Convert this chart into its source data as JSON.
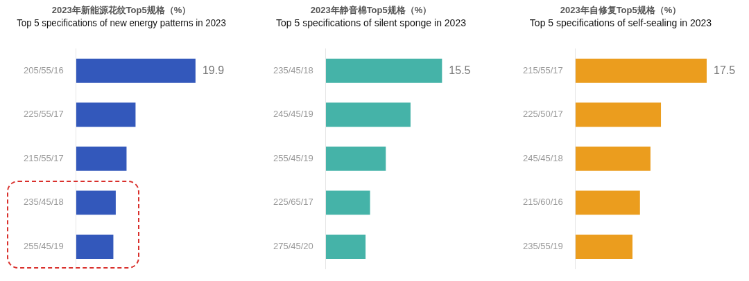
{
  "chart_data": [
    {
      "type": "bar",
      "orientation": "horizontal",
      "title": "2023年新能源花纹Top5规格（%）",
      "subtitle": "Top 5 specifications of new energy patterns in 2023",
      "categories": [
        "205/55/16",
        "225/55/17",
        "215/55/17",
        "235/45/18",
        "255/45/19"
      ],
      "values": [
        19.9,
        9.9,
        8.4,
        6.6,
        6.2
      ],
      "value_labels": [
        "19.9",
        null,
        null,
        null,
        null
      ],
      "color": "#3358bb",
      "tick_labels": "y",
      "grid": false,
      "legend": false
    },
    {
      "type": "bar",
      "orientation": "horizontal",
      "title": "2023年静音棉Top5规格（%）",
      "subtitle": "Top 5 specifications of silent sponge in 2023",
      "categories": [
        "235/45/18",
        "245/45/19",
        "255/45/19",
        "225/65/17",
        "275/45/20"
      ],
      "values": [
        15.5,
        11.3,
        8.0,
        5.9,
        5.3
      ],
      "value_labels": [
        "15.5",
        null,
        null,
        null,
        null
      ],
      "color": "#45b3a8",
      "tick_labels": "y",
      "grid": false,
      "legend": false
    },
    {
      "type": "bar",
      "orientation": "horizontal",
      "title": "2023年自修复Top5规格（%）",
      "subtitle": "Top 5 specifications of self-sealing in 2023",
      "categories": [
        "215/55/17",
        "225/50/17",
        "245/45/18",
        "215/60/16",
        "235/55/19"
      ],
      "values": [
        17.5,
        11.4,
        10.0,
        8.6,
        7.6
      ],
      "value_labels": [
        "17.5",
        null,
        null,
        null,
        null
      ],
      "color": "#eb9d1e",
      "tick_labels": "y",
      "grid": false,
      "legend": false
    }
  ]
}
